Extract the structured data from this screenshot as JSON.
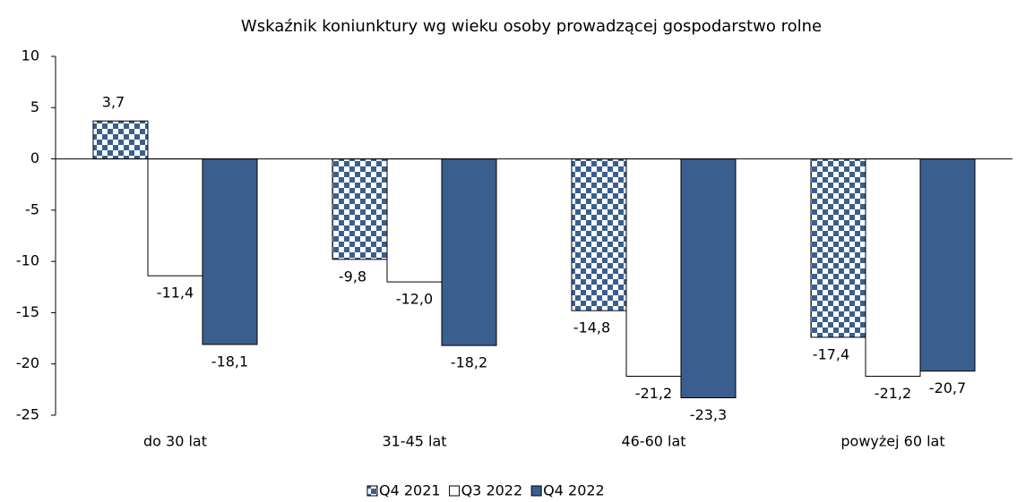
{
  "chart_data": {
    "type": "bar",
    "title": "Wskaźnik koniunktury wg wieku osoby prowadzącej gospodarstwo rolne",
    "categories": [
      "do 30 lat",
      "31-45 lat",
      "46-60 lat",
      "powyżej 60 lat"
    ],
    "series": [
      {
        "name": "Q4 2021",
        "color": "#3a5f8f",
        "pattern": "checker",
        "values": [
          3.7,
          -9.8,
          -14.8,
          -17.4
        ],
        "value_labels": [
          "3,7",
          "-9,8",
          "-14,8",
          "-17,4"
        ]
      },
      {
        "name": "Q3 2022",
        "color": "#ffffff",
        "values": [
          -11.4,
          -12.0,
          -21.2,
          -21.2
        ],
        "value_labels": [
          "-11,4",
          "-12,0",
          "-21,2",
          "-21,2"
        ]
      },
      {
        "name": "Q4 2022",
        "color": "#3a5f8f",
        "values": [
          -18.1,
          -18.2,
          -23.3,
          -20.7
        ],
        "value_labels": [
          "-18,1",
          "-18,2",
          "-23,3",
          "-20,7"
        ]
      }
    ],
    "ylim": [
      -25,
      10
    ],
    "yticks": [
      10,
      5,
      0,
      -5,
      -10,
      -15,
      -20,
      -25
    ],
    "grid": false,
    "legend": "bottom"
  }
}
